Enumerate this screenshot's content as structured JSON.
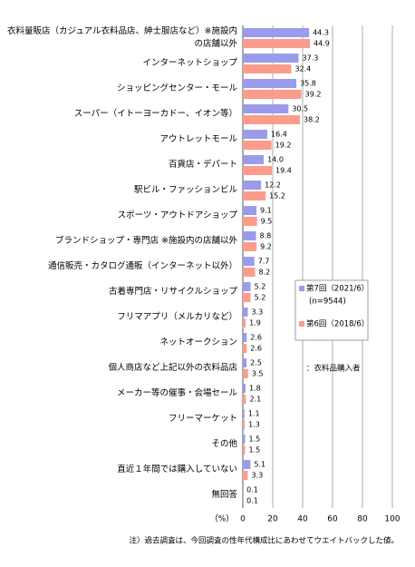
{
  "chart_data": {
    "type": "barh",
    "categories": [
      "衣料量販店（カジュアル衣料品店、紳士服店など）※施設内の店舗以外",
      "インターネットショップ",
      "ショッピングセンター・モール",
      "スーパー（イトーヨーカドー、イオン等）",
      "アウトレットモール",
      "百貨店・デパート",
      "駅ビル・ファッションビル",
      "スポーツ・アウトドアショップ",
      "ブランドショップ・専門店 ※施設内の店舗以外",
      "通信販売・カタログ通販（インターネット以外）",
      "古着専門店・リサイクルショップ",
      "フリマアプリ（メルカリなど）",
      "ネットオークション",
      "個人商店など上記以外の衣料品店",
      "メーカー等の催事・会場セール",
      "フリーマーケット",
      "その他",
      "直近１年間では購入していない",
      "無回答"
    ],
    "series": [
      {
        "name": "第7回（2021/6）",
        "color": "#9b9bec",
        "values": [
          44.3,
          37.3,
          35.8,
          30.5,
          16.4,
          14.0,
          12.2,
          9.1,
          8.8,
          7.7,
          5.2,
          3.3,
          2.6,
          2.5,
          1.8,
          1.1,
          1.5,
          5.1,
          0.1
        ],
        "value_labels": [
          "44.3",
          "37.3",
          "35.8",
          "30.5",
          "16.4",
          "14.0",
          "12.2",
          "9.1",
          "8.8",
          "7.7",
          "5.2",
          "3.3",
          "2.6",
          "2.5",
          "1.8",
          "1.1",
          "1.5",
          "5.1",
          "0.1"
        ]
      },
      {
        "name": "第6回（2018/6）",
        "color": "#fc9c8c",
        "values": [
          44.9,
          32.4,
          39.2,
          38.2,
          19.2,
          19.4,
          15.2,
          9.5,
          9.2,
          8.2,
          5.2,
          1.9,
          2.6,
          3.5,
          2.1,
          1.3,
          1.5,
          3.3,
          0.1
        ],
        "value_labels": [
          "44.9",
          "32.4",
          "39.2",
          "38.2",
          "19.2",
          "19.4",
          "15.2",
          "9.5",
          "9.2",
          "8.2",
          "5.2",
          "1.9",
          "2.6",
          "3.5",
          "2.1",
          "1.3",
          "1.5",
          "3.3",
          "0.1"
        ]
      }
    ],
    "legend_note": "(n=9544)",
    "sample_note": "：衣料品購入者",
    "x_unit": "（%）",
    "footnote": "注）過去調査は、今回調査の性年代構成比にあわせてウエイトバックした値。",
    "xlim": [
      0,
      100
    ],
    "xticks": [
      0,
      20,
      40,
      60,
      80,
      100
    ],
    "grid": true
  }
}
